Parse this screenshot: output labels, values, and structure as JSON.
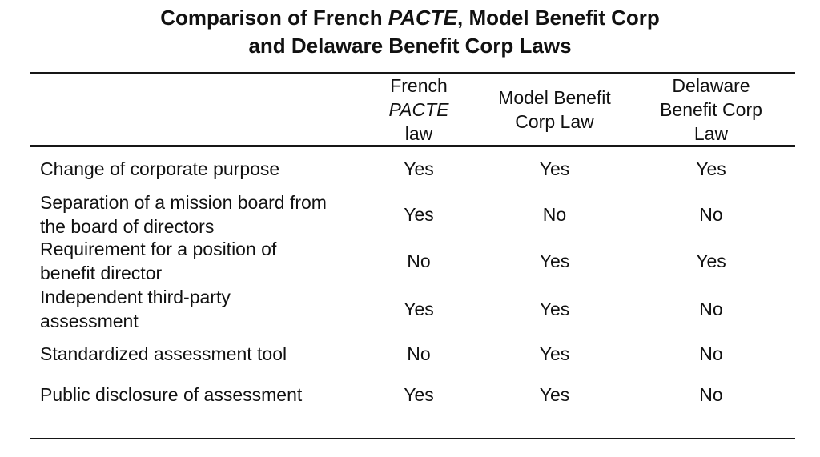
{
  "title": {
    "line1_prefix": "Comparison of French ",
    "line1_italic": "PACTE",
    "line1_suffix": ", Model Benefit Corp",
    "line2": "and Delaware Benefit Corp Laws"
  },
  "table": {
    "header": {
      "french": {
        "line1": "French",
        "line2_italic": "PACTE",
        "line3": "law"
      },
      "model": {
        "line1": "Model Benefit",
        "line2": "Corp Law"
      },
      "delaware": {
        "line1": "Delaware",
        "line2": "Benefit Corp",
        "line3": "Law"
      }
    },
    "rows": [
      {
        "label": "Change of corporate purpose",
        "french": "Yes",
        "model": "Yes",
        "delaware": "Yes"
      },
      {
        "label": "Separation of a mission board from the board of directors",
        "french": "Yes",
        "model": "No",
        "delaware": "No"
      },
      {
        "label": "Requirement for a position of benefit director",
        "french": "No",
        "model": "Yes",
        "delaware": "Yes"
      },
      {
        "label": "Independent third-party assessment",
        "french": "Yes",
        "model": "Yes",
        "delaware": "No"
      },
      {
        "label": "Standardized assessment tool",
        "french": "No",
        "model": "Yes",
        "delaware": "No"
      },
      {
        "label": "Public disclosure of assessment",
        "french": "Yes",
        "model": "Yes",
        "delaware": "No"
      }
    ]
  },
  "chart_data": {
    "type": "table",
    "title": "Comparison of French PACTE, Model Benefit Corp and Delaware Benefit Corp Laws",
    "columns": [
      "",
      "French PACTE law",
      "Model Benefit Corp Law",
      "Delaware Benefit Corp Law"
    ],
    "rows": [
      [
        "Change of corporate purpose",
        "Yes",
        "Yes",
        "Yes"
      ],
      [
        "Separation of a mission board from the board of directors",
        "Yes",
        "No",
        "No"
      ],
      [
        "Requirement for a position of benefit director",
        "No",
        "Yes",
        "Yes"
      ],
      [
        "Independent third-party assessment",
        "Yes",
        "Yes",
        "No"
      ],
      [
        "Standardized assessment tool",
        "No",
        "Yes",
        "No"
      ],
      [
        "Public disclosure of assessment",
        "Yes",
        "Yes",
        "No"
      ]
    ],
    "layout": {
      "grid": "off",
      "rules": [
        "top",
        "below-header",
        "bottom"
      ]
    }
  },
  "colors": {
    "background": "#ffffff",
    "text": "#111111",
    "rule": "#161616"
  }
}
